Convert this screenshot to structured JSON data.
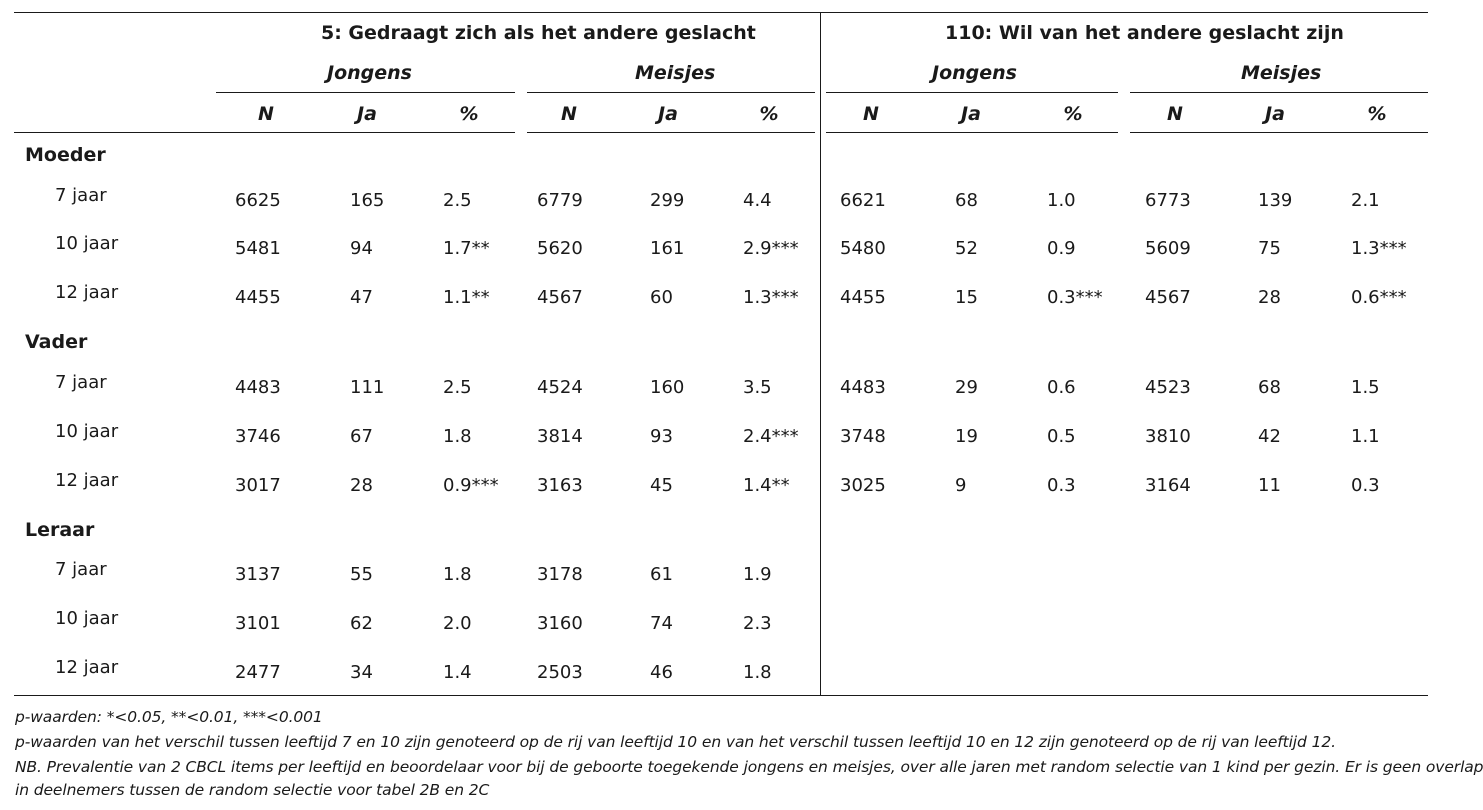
{
  "table": {
    "sections": [
      {
        "title": "5: Gedraagt zich als het andere geslacht"
      },
      {
        "title": "110: Wil van het andere geslacht zijn"
      }
    ],
    "subgroups": [
      "Jongens",
      "Meisjes",
      "Jongens",
      "Meisjes"
    ],
    "col_labels": [
      "N",
      "Ja",
      "%",
      "N",
      "Ja",
      "%",
      "N",
      "Ja",
      "%",
      "N",
      "Ja",
      "%"
    ],
    "groups": [
      {
        "label": "Moeder",
        "rows": [
          {
            "age": "7 jaar",
            "cells": [
              "6625",
              "165",
              "2.5",
              "6779",
              "299",
              "4.4",
              "6621",
              "68",
              "1.0",
              "6773",
              "139",
              "2.1"
            ]
          },
          {
            "age": "10 jaar",
            "cells": [
              "5481",
              "94",
              "1.7**",
              "5620",
              "161",
              "2.9***",
              "5480",
              "52",
              "0.9",
              "5609",
              "75",
              "1.3***"
            ]
          },
          {
            "age": "12 jaar",
            "cells": [
              "4455",
              "47",
              "1.1**",
              "4567",
              "60",
              "1.3***",
              "4455",
              "15",
              "0.3***",
              "4567",
              "28",
              "0.6***"
            ]
          }
        ]
      },
      {
        "label": "Vader",
        "rows": [
          {
            "age": "7 jaar",
            "cells": [
              "4483",
              "111",
              "2.5",
              "4524",
              "160",
              "3.5",
              "4483",
              "29",
              "0.6",
              "4523",
              "68",
              "1.5"
            ]
          },
          {
            "age": "10 jaar",
            "cells": [
              "3746",
              "67",
              "1.8",
              "3814",
              "93",
              "2.4***",
              "3748",
              "19",
              "0.5",
              "3810",
              "42",
              "1.1"
            ]
          },
          {
            "age": "12 jaar",
            "cells": [
              "3017",
              "28",
              "0.9***",
              "3163",
              "45",
              "1.4**",
              "3025",
              "9",
              "0.3",
              "3164",
              "11",
              "0.3"
            ]
          }
        ]
      },
      {
        "label": "Leraar",
        "rows": [
          {
            "age": "7 jaar",
            "cells": [
              "3137",
              "55",
              "1.8",
              "3178",
              "61",
              "1.9"
            ]
          },
          {
            "age": "10 jaar",
            "cells": [
              "3101",
              "62",
              "2.0",
              "3160",
              "74",
              "2.3"
            ]
          },
          {
            "age": "12 jaar",
            "cells": [
              "2477",
              "34",
              "1.4",
              "2503",
              "46",
              "1.8"
            ]
          }
        ]
      }
    ]
  },
  "notes": [
    "p-waarden: *<0.05, **<0.01, ***<0.001",
    "p-waarden van het verschil tussen leeftijd 7 en 10 zijn genoteerd op de rij van leeftijd 10 en van het verschil tussen leeftijd 10 en 12 zijn genoteerd op de rij van leeftijd 12.",
    "NB. Prevalentie van 2 CBCL items per leeftijd en beoordelaar voor bij de geboorte toegekende jongens en meisjes, over alle jaren met random selectie van 1 kind per gezin. Er is geen overlap",
    "in deelnemers tussen de random selectie voor tabel 2B en 2C"
  ]
}
